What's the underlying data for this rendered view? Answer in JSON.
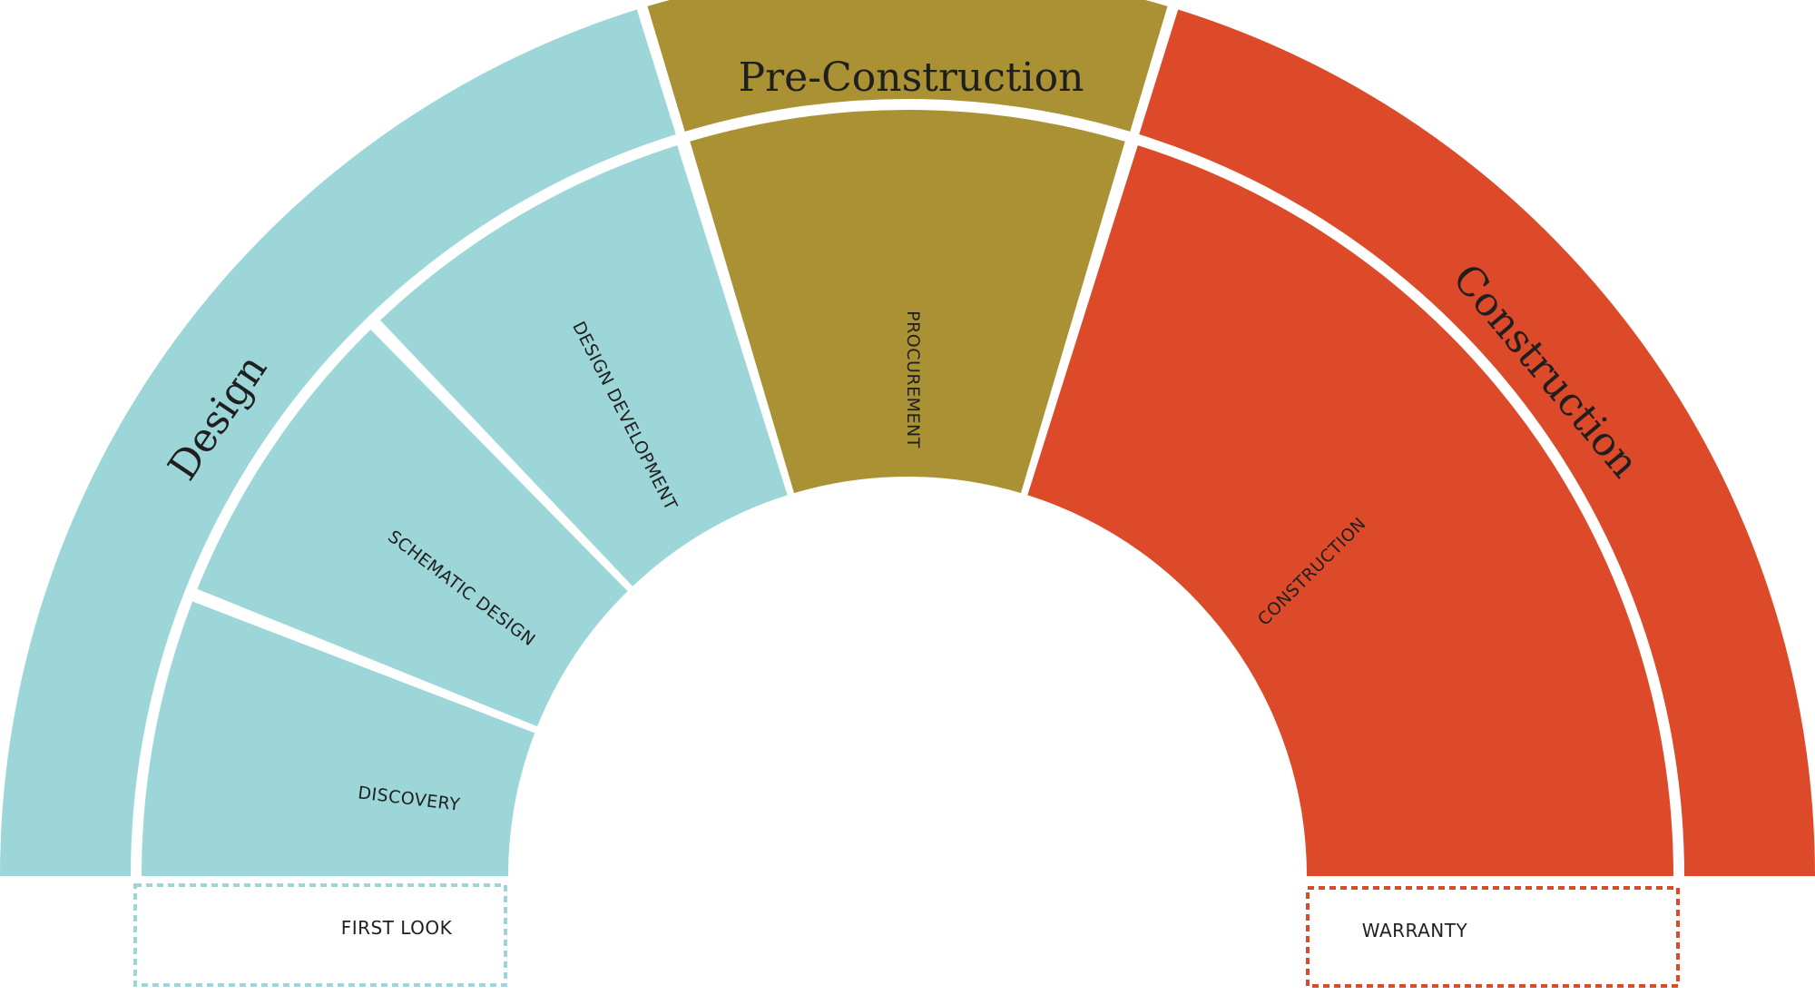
{
  "colors": {
    "design": "#9dd6d8",
    "preconstruction": "#aa9134",
    "construction": "#dd4a29",
    "gap": "#ffffff",
    "text": "#1f1f1f"
  },
  "phases": [
    {
      "key": "design",
      "label": "Design"
    },
    {
      "key": "preconstruction",
      "label": "Pre-Construction"
    },
    {
      "key": "construction",
      "label": "Construction"
    }
  ],
  "stages": [
    {
      "key": "discovery",
      "label": "DISCOVERY",
      "phase": "design"
    },
    {
      "key": "schematic",
      "label": "SCHEMATIC DESIGN",
      "phase": "design"
    },
    {
      "key": "design-development",
      "label": "DESIGN DEVELOPMENT",
      "phase": "design"
    },
    {
      "key": "procurement",
      "label": "PROCUREMENT",
      "phase": "preconstruction"
    },
    {
      "key": "construction",
      "label": "CONSTRUCTION",
      "phase": "construction"
    }
  ],
  "boxes": [
    {
      "key": "first-look",
      "label": "FIRST LOOK",
      "phase": "design"
    },
    {
      "key": "warranty",
      "label": "WARRANTY",
      "phase": "construction"
    }
  ]
}
